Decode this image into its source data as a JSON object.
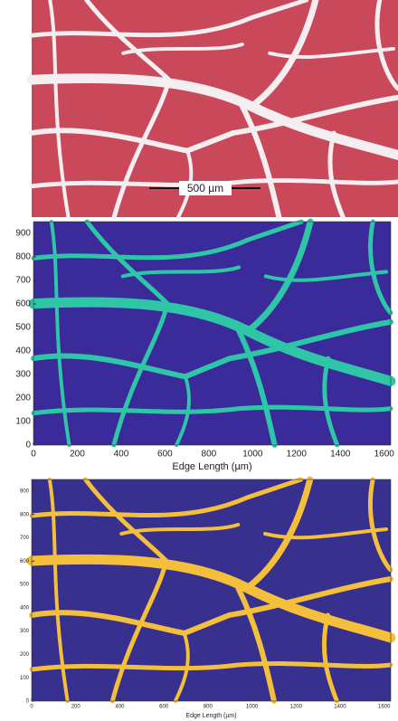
{
  "panels": [
    {
      "scale_bar": "500 µm"
    },
    {
      "xlim": [
        0,
        1630
      ],
      "ylim": [
        0,
        950
      ],
      "xticks": [
        0,
        200,
        400,
        600,
        800,
        1000,
        1200,
        1400,
        1600
      ],
      "yticks": [
        0,
        100,
        200,
        300,
        400,
        500,
        600,
        700,
        800,
        900
      ],
      "xlabel": "Edge Length (µm)"
    },
    {
      "xlim": [
        0,
        1630
      ],
      "ylim": [
        0,
        950
      ],
      "xticks": [
        0,
        200,
        400,
        600,
        800,
        1000,
        1200,
        1400,
        1600
      ],
      "yticks": [
        0,
        100,
        200,
        300,
        400,
        500,
        600,
        700,
        800,
        900
      ],
      "xlabel": "Edge Length (µm)"
    }
  ]
}
